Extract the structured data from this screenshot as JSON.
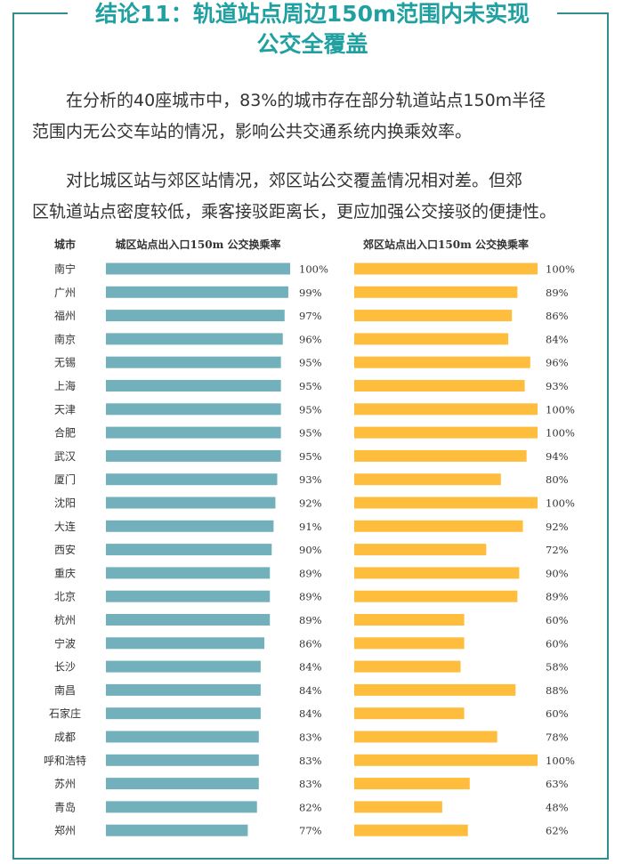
{
  "title_line1": "结论11：轨道站点周边150m范围内未实现",
  "title_line2": "公交全覆盖",
  "paragraph1_line1": "在分析的40座城市中，83%的城市存在部分轨道站点150m半径",
  "paragraph1_line2": "范围内无公交车站的情况，影响公共交通系统内换乘效率。",
  "paragraph2_line1": "对比城区站与郊区站情况，郊区站公交覆盖情况相对差。但郊",
  "paragraph2_line2": "区轨道站点密度较低，乘客接驳距离长，更应加强公交接驳的便捷性。",
  "colors": {
    "title": "#20a0a0",
    "frame": "#2f8f8f",
    "urban_bar": "#72b1bc",
    "suburban_bar": "#ffbd3d"
  },
  "chart_data": {
    "type": "bar",
    "orientation": "horizontal",
    "category_header": "城市",
    "categories": [
      "南宁",
      "广州",
      "福州",
      "南京",
      "无锡",
      "上海",
      "天津",
      "合肥",
      "武汉",
      "厦门",
      "沈阳",
      "大连",
      "西安",
      "重庆",
      "北京",
      "杭州",
      "宁波",
      "长沙",
      "南昌",
      "石家庄",
      "成都",
      "呼和浩特",
      "苏州",
      "青岛",
      "郑州"
    ],
    "series": [
      {
        "name": "城区站点出入口150m 公交换乘率",
        "color": "#72b1bc",
        "values": [
          100,
          99,
          97,
          96,
          95,
          95,
          95,
          95,
          95,
          93,
          92,
          91,
          90,
          89,
          89,
          89,
          86,
          84,
          84,
          84,
          83,
          83,
          83,
          82,
          77
        ]
      },
      {
        "name": "郊区站点出入口150m 公交换乘率",
        "color": "#ffbd3d",
        "values": [
          100,
          89,
          86,
          84,
          96,
          93,
          100,
          100,
          94,
          80,
          100,
          92,
          72,
          90,
          89,
          60,
          60,
          58,
          88,
          60,
          78,
          100,
          63,
          48,
          62
        ]
      }
    ],
    "unit": "%",
    "xlim": [
      0,
      100
    ]
  }
}
